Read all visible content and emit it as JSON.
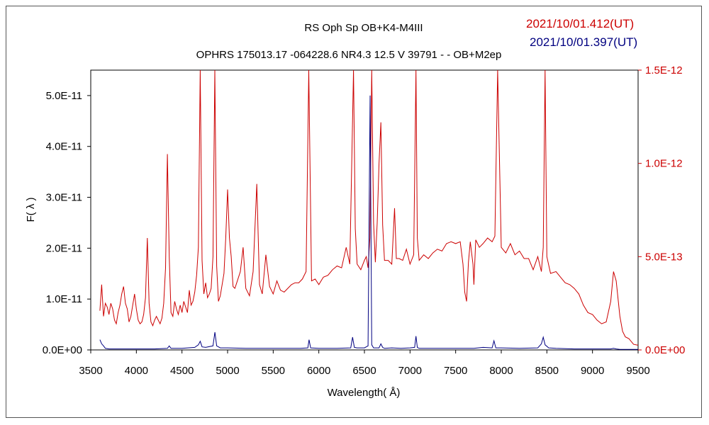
{
  "chart_data": {
    "type": "line",
    "title": "RS Oph    Sp OB+K4-M4III",
    "subtitle": "OPHRS 175013.17 -064228.6 NR4.3 12.5 V 39791 - - OB+M2ep",
    "xlabel": "Wavelength( Å)",
    "ylabel": "F( λ )",
    "xlim": [
      3500,
      9500
    ],
    "ylim_left": [
      0,
      5.5e-11
    ],
    "ylim_right": [
      0,
      1.5e-12
    ],
    "x_ticks": [
      "3500",
      "4000",
      "4500",
      "5000",
      "5500",
      "6000",
      "6500",
      "7000",
      "7500",
      "8000",
      "8500",
      "9000",
      "9500"
    ],
    "y_ticks_left": [
      "0.0E+00",
      "1.0E-11",
      "2.0E-11",
      "3.0E-11",
      "4.0E-11",
      "5.0E-11"
    ],
    "y_ticks_right": [
      "0.0E+00",
      "5.0E-13",
      "1.0E-12",
      "1.5E-12"
    ],
    "legend": [
      {
        "label": "2021/10/01.412(UT)",
        "color": "#cc0000"
      },
      {
        "label": "2021/10/01.397(UT)",
        "color": "#000080"
      }
    ],
    "series": [
      {
        "name": "2021/10/01.412(UT)",
        "color": "#cc0000",
        "axis": "right",
        "x": [
          3600,
          3620,
          3640,
          3660,
          3680,
          3700,
          3720,
          3740,
          3760,
          3780,
          3800,
          3820,
          3840,
          3860,
          3880,
          3900,
          3920,
          3940,
          3960,
          3980,
          4000,
          4020,
          4040,
          4060,
          4080,
          4100,
          4120,
          4140,
          4160,
          4180,
          4200,
          4220,
          4240,
          4260,
          4280,
          4300,
          4320,
          4340,
          4360,
          4380,
          4400,
          4420,
          4440,
          4460,
          4480,
          4500,
          4520,
          4540,
          4560,
          4580,
          4600,
          4620,
          4640,
          4660,
          4680,
          4700,
          4720,
          4740,
          4760,
          4780,
          4800,
          4820,
          4840,
          4860,
          4880,
          4900,
          4920,
          4940,
          4960,
          4980,
          5000,
          5020,
          5040,
          5060,
          5080,
          5100,
          5140,
          5170,
          5200,
          5240,
          5280,
          5320,
          5350,
          5380,
          5420,
          5460,
          5500,
          5540,
          5580,
          5620,
          5660,
          5700,
          5740,
          5780,
          5820,
          5860,
          5890,
          5920,
          5960,
          6000,
          6050,
          6100,
          6150,
          6200,
          6250,
          6300,
          6340,
          6380,
          6400,
          6420,
          6460,
          6500,
          6520,
          6540,
          6560,
          6580,
          6600,
          6620,
          6640,
          6660,
          6680,
          6700,
          6720,
          6760,
          6800,
          6830,
          6850,
          6880,
          6920,
          6960,
          7000,
          7040,
          7065,
          7080,
          7100,
          7150,
          7200,
          7250,
          7300,
          7350,
          7400,
          7450,
          7500,
          7550,
          7580,
          7600,
          7620,
          7640,
          7660,
          7690,
          7700,
          7720,
          7760,
          7800,
          7850,
          7900,
          7930,
          7960,
          8000,
          8050,
          8100,
          8150,
          8200,
          8250,
          8300,
          8350,
          8400,
          8440,
          8460,
          8480,
          8500,
          8540,
          8600,
          8650,
          8700,
          8750,
          8800,
          8850,
          8900,
          8950,
          9000,
          9050,
          9100,
          9150,
          9200,
          9230,
          9260,
          9300,
          9330,
          9360,
          9400,
          9450,
          9500
        ],
        "y": [
          2.1e-13,
          3.5e-13,
          1.8e-13,
          2.5e-13,
          2.3e-13,
          1.9e-13,
          2.5e-13,
          2.2e-13,
          1.6e-13,
          1.4e-13,
          2e-13,
          2.4e-13,
          3e-13,
          3.4e-13,
          2.5e-13,
          2.2e-13,
          1.5e-13,
          1.8e-13,
          2.4e-13,
          3e-13,
          2.2e-13,
          1.6e-13,
          1.4e-13,
          1.5e-13,
          1.9e-13,
          2.8e-13,
          6e-13,
          2.5e-13,
          1.5e-13,
          1.3e-13,
          1.6e-13,
          1.8e-13,
          1.6e-13,
          1.4e-13,
          1.7e-13,
          2.5e-13,
          4.4e-13,
          1.05e-12,
          5e-13,
          2e-13,
          1.8e-13,
          2.6e-13,
          2.2e-13,
          1.9e-13,
          2.4e-13,
          2e-13,
          2.6e-13,
          2.3e-13,
          2e-13,
          3.2e-13,
          2.4e-13,
          2.6e-13,
          3.1e-13,
          4e-13,
          5.5e-13,
          1.5e-12,
          4.8e-13,
          3e-13,
          3.6e-13,
          2.8e-13,
          3e-13,
          3.3e-13,
          5e-13,
          1.5e-12,
          4.5e-13,
          2.6e-13,
          2.9e-13,
          3.5e-13,
          4.1e-13,
          6e-13,
          8.6e-13,
          6e-13,
          5e-13,
          3.4e-13,
          3.3e-13,
          3.6e-13,
          4.2e-13,
          5.5e-13,
          3.3e-13,
          2.9e-13,
          4.2e-13,
          8.9e-13,
          3.5e-13,
          3e-13,
          5.1e-13,
          3.4e-13,
          3e-13,
          3.7e-13,
          3.2e-13,
          3.1e-13,
          3.3e-13,
          3.5e-13,
          3.6e-13,
          3.6e-13,
          3.8e-13,
          4.2e-13,
          1.5e-12,
          3.7e-13,
          3.8e-13,
          3.5e-13,
          3.9e-13,
          4e-13,
          4.3e-13,
          4.5e-13,
          4.4e-13,
          5.5e-13,
          4.6e-13,
          1.5e-12,
          6.5e-13,
          4.6e-13,
          4.3e-13,
          4.8e-13,
          5e-13,
          4.4e-13,
          6e-13,
          1.5e-12,
          6.8e-13,
          4.7e-13,
          6.8e-13,
          1e-12,
          1.22e-12,
          6.7e-13,
          4.8e-13,
          4.8e-13,
          4.6e-13,
          7.6e-13,
          4.9e-13,
          4.9e-13,
          4.8e-13,
          5.4e-13,
          4.6e-13,
          5.1e-13,
          1.5e-12,
          6e-13,
          4.8e-13,
          5.1e-13,
          4.9e-13,
          5.2e-13,
          5.4e-13,
          5.3e-13,
          5.7e-13,
          5.8e-13,
          5.7e-13,
          5.8e-13,
          4.6e-13,
          3.1e-13,
          2.6e-13,
          4.7e-13,
          5.8e-13,
          4.6e-13,
          3.5e-13,
          5.9e-13,
          5.5e-13,
          5.7e-13,
          6e-13,
          5.8e-13,
          6.1e-13,
          1.5e-12,
          5.5e-13,
          5.2e-13,
          5.7e-13,
          5.1e-13,
          5.3e-13,
          4.9e-13,
          4.9e-13,
          4.3e-13,
          5e-13,
          4.2e-13,
          5.5e-13,
          1.5e-12,
          5e-13,
          4.1e-13,
          4.2e-13,
          3.9e-13,
          3.6e-13,
          3.5e-13,
          3.3e-13,
          3e-13,
          2.4e-13,
          2e-13,
          1.9e-13,
          1.6e-13,
          1.4e-13,
          1.5e-13,
          2.6e-13,
          4.2e-13,
          3.7e-13,
          1.8e-13,
          1e-13,
          7e-14,
          6e-14,
          3e-14,
          2.5e-14
        ]
      },
      {
        "name": "2021/10/01.397(UT)",
        "color": "#000080",
        "axis": "left",
        "x": [
          3600,
          3620,
          3640,
          3660,
          3700,
          3800,
          3900,
          4000,
          4100,
          4200,
          4340,
          4360,
          4380,
          4500,
          4640,
          4680,
          4700,
          4720,
          4760,
          4840,
          4861,
          4880,
          4920,
          5000,
          5200,
          5400,
          5600,
          5800,
          5880,
          5893,
          5910,
          6000,
          6200,
          6350,
          6370,
          6390,
          6420,
          6500,
          6540,
          6562,
          6580,
          6600,
          6660,
          6680,
          6700,
          6720,
          6800,
          6900,
          7000,
          7050,
          7065,
          7080,
          7100,
          7300,
          7500,
          7700,
          7800,
          7900,
          7920,
          7940,
          8000,
          8200,
          8400,
          8440,
          8460,
          8480,
          8520,
          8600,
          8800,
          9000,
          9200,
          9230,
          9260,
          9300,
          9500
        ],
        "y": [
          2e-12,
          1.2e-12,
          8e-13,
          3e-13,
          2e-13,
          2e-13,
          2e-13,
          2e-13,
          2e-13,
          2e-13,
          3e-13,
          8e-13,
          3e-13,
          3e-13,
          5e-13,
          1e-12,
          1.7e-12,
          6e-13,
          5e-13,
          8e-13,
          3.5e-12,
          8e-13,
          4e-13,
          4e-13,
          3e-13,
          3e-13,
          3e-13,
          3e-13,
          4e-13,
          2e-12,
          4e-13,
          3e-13,
          3e-13,
          4e-13,
          2.5e-12,
          5e-13,
          4e-13,
          4e-13,
          8e-13,
          5e-11,
          1e-12,
          4e-13,
          4e-13,
          1.2e-12,
          5e-13,
          3e-13,
          4e-13,
          3e-13,
          4e-13,
          5e-13,
          2.7e-12,
          5e-13,
          3e-13,
          3e-13,
          3e-13,
          3e-13,
          5e-13,
          4e-13,
          1.8e-12,
          4e-13,
          4e-13,
          3e-13,
          4e-13,
          1.2e-12,
          2.5e-12,
          1e-12,
          4e-13,
          3e-13,
          2e-13,
          2e-13,
          2e-13,
          3e-13,
          2e-13,
          1e-13,
          1e-13
        ]
      }
    ],
    "grid": false,
    "legend_position": "top-right"
  }
}
